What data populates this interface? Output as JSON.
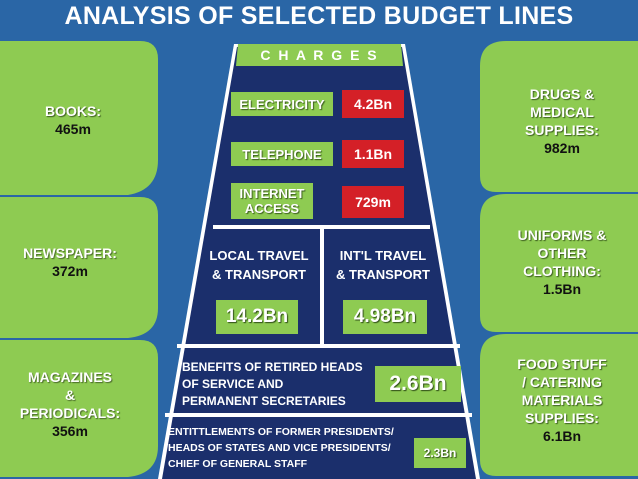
{
  "title": "ANALYSIS OF SELECTED BUDGET LINES",
  "left_items": [
    {
      "name": "BOOKS:",
      "value": "465m"
    },
    {
      "name": "NEWSPAPER:",
      "value": "372m"
    },
    {
      "name_lines": [
        "MAGAZINES",
        "&",
        "PERIODICALS:"
      ],
      "value": "356m"
    }
  ],
  "right_items": [
    {
      "name_lines": [
        "DRUGS &",
        "MEDICAL",
        "SUPPLIES:"
      ],
      "value": "982m"
    },
    {
      "name_lines": [
        "UNIFORMS &",
        "OTHER",
        "CLOTHING:"
      ],
      "value": "1.5Bn"
    },
    {
      "name_lines": [
        "FOOD STUFF",
        "/ CATERING",
        "MATERIALS",
        "SUPPLIES:"
      ],
      "value": "6.1Bn"
    }
  ],
  "charges": {
    "header": "C H A R G E S",
    "rows": [
      {
        "label": "ELECTRICITY",
        "value": "4.2Bn"
      },
      {
        "label": "TELEPHONE",
        "value": "1.1Bn"
      },
      {
        "label_lines": [
          "INTERNET",
          "ACCESS"
        ],
        "value": "729m"
      }
    ]
  },
  "travel": {
    "local": {
      "label_lines": [
        "LOCAL TRAVEL",
        "& TRANSPORT"
      ],
      "value": "14.2Bn"
    },
    "intl": {
      "label_lines": [
        "INT'L TRAVEL",
        "& TRANSPORT"
      ],
      "value": "4.98Bn"
    }
  },
  "benefits": {
    "label_lines": [
      "BENEFITS OF RETIRED HEADS",
      "OF SERVICE AND",
      "PERMANENT SECRETARIES"
    ],
    "value": "2.6Bn"
  },
  "entitlements": {
    "label_lines": [
      "ENTITTLEMENTS OF FORMER PRESIDENTS/",
      "HEADS OF STATES AND VICE PRESIDENTS/",
      "CHIEF OF GENERAL STAFF"
    ],
    "value": "2.3Bn"
  },
  "colors": {
    "background": "#2a66a6",
    "leaf_green": "#8ecb52",
    "pyramid_navy": "#1b2f6c",
    "value_red": "#d42027"
  }
}
